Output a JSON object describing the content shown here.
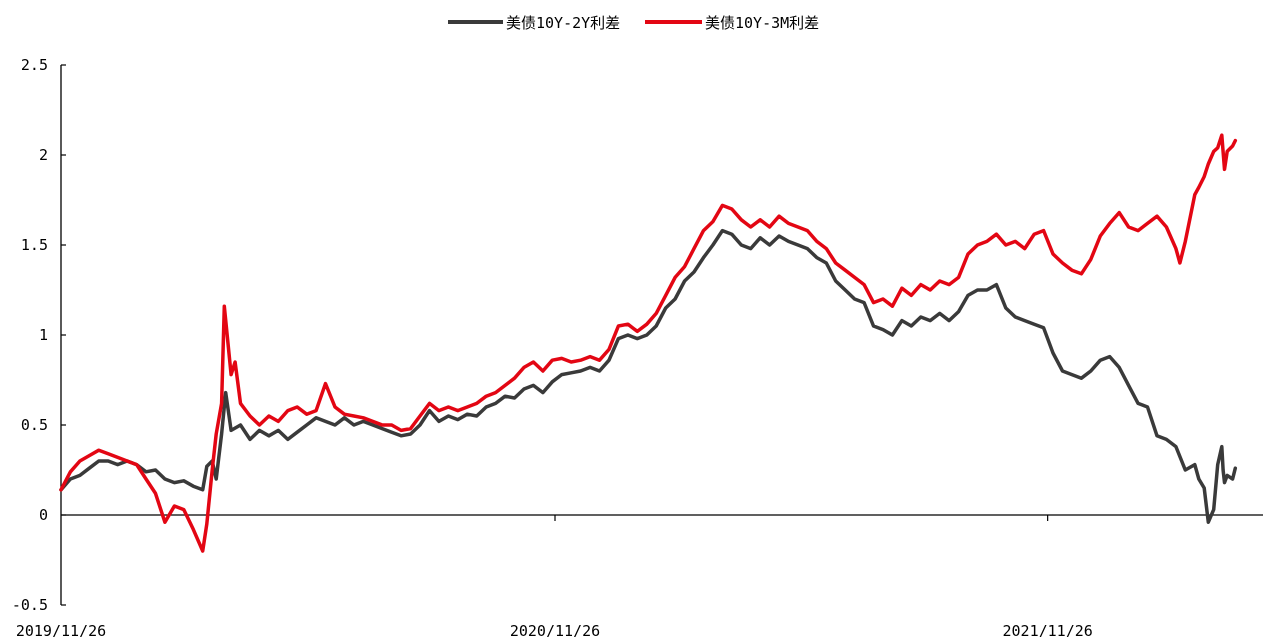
{
  "chart_data": {
    "type": "line",
    "title": "",
    "xlabel": "",
    "ylabel": "",
    "ylim": [
      -0.5,
      2.5
    ],
    "yticks": [
      "2.5",
      "2",
      "1.5",
      "1",
      "0.5",
      "0",
      "-0.5"
    ],
    "xticks": [
      "2019/11/26",
      "2020/11/26",
      "2021/11/26"
    ],
    "x_range": [
      "2019/11/26",
      "2022/04/06"
    ],
    "grid": false,
    "legend": "top-center",
    "series": [
      {
        "name": "美债10Y-2Y利差",
        "color": "#3a3a3a",
        "points": [
          [
            "2019/11/26",
            0.14
          ],
          [
            "2019/12/03",
            0.2
          ],
          [
            "2019/12/10",
            0.22
          ],
          [
            "2019/12/17",
            0.26
          ],
          [
            "2019/12/24",
            0.3
          ],
          [
            "2019/12/31",
            0.3
          ],
          [
            "2020/01/07",
            0.28
          ],
          [
            "2020/01/14",
            0.3
          ],
          [
            "2020/01/21",
            0.28
          ],
          [
            "2020/01/28",
            0.24
          ],
          [
            "2020/02/04",
            0.25
          ],
          [
            "2020/02/11",
            0.2
          ],
          [
            "2020/02/18",
            0.18
          ],
          [
            "2020/02/25",
            0.19
          ],
          [
            "2020/03/03",
            0.16
          ],
          [
            "2020/03/10",
            0.14
          ],
          [
            "2020/03/13",
            0.27
          ],
          [
            "2020/03/17",
            0.3
          ],
          [
            "2020/03/20",
            0.2
          ],
          [
            "2020/03/24",
            0.45
          ],
          [
            "2020/03/27",
            0.68
          ],
          [
            "2020/03/31",
            0.47
          ],
          [
            "2020/04/07",
            0.5
          ],
          [
            "2020/04/14",
            0.42
          ],
          [
            "2020/04/21",
            0.47
          ],
          [
            "2020/04/28",
            0.44
          ],
          [
            "2020/05/05",
            0.47
          ],
          [
            "2020/05/12",
            0.42
          ],
          [
            "2020/05/19",
            0.46
          ],
          [
            "2020/05/26",
            0.5
          ],
          [
            "2020/06/02",
            0.54
          ],
          [
            "2020/06/09",
            0.52
          ],
          [
            "2020/06/16",
            0.5
          ],
          [
            "2020/06/23",
            0.54
          ],
          [
            "2020/06/30",
            0.5
          ],
          [
            "2020/07/07",
            0.52
          ],
          [
            "2020/07/14",
            0.5
          ],
          [
            "2020/07/21",
            0.48
          ],
          [
            "2020/07/28",
            0.46
          ],
          [
            "2020/08/04",
            0.44
          ],
          [
            "2020/08/11",
            0.45
          ],
          [
            "2020/08/18",
            0.5
          ],
          [
            "2020/08/25",
            0.58
          ],
          [
            "2020/09/01",
            0.52
          ],
          [
            "2020/09/08",
            0.55
          ],
          [
            "2020/09/15",
            0.53
          ],
          [
            "2020/09/22",
            0.56
          ],
          [
            "2020/09/29",
            0.55
          ],
          [
            "2020/10/06",
            0.6
          ],
          [
            "2020/10/13",
            0.62
          ],
          [
            "2020/10/20",
            0.66
          ],
          [
            "2020/10/27",
            0.65
          ],
          [
            "2020/11/03",
            0.7
          ],
          [
            "2020/11/10",
            0.72
          ],
          [
            "2020/11/17",
            0.68
          ],
          [
            "2020/11/24",
            0.74
          ],
          [
            "2020/12/01",
            0.78
          ],
          [
            "2020/12/08",
            0.79
          ],
          [
            "2020/12/15",
            0.8
          ],
          [
            "2020/12/22",
            0.82
          ],
          [
            "2020/12/29",
            0.8
          ],
          [
            "2021/01/05",
            0.86
          ],
          [
            "2021/01/12",
            0.98
          ],
          [
            "2021/01/19",
            1.0
          ],
          [
            "2021/01/26",
            0.98
          ],
          [
            "2021/02/02",
            1.0
          ],
          [
            "2021/02/09",
            1.05
          ],
          [
            "2021/02/16",
            1.15
          ],
          [
            "2021/02/23",
            1.2
          ],
          [
            "2021/03/02",
            1.3
          ],
          [
            "2021/03/09",
            1.35
          ],
          [
            "2021/03/16",
            1.43
          ],
          [
            "2021/03/23",
            1.5
          ],
          [
            "2021/03/30",
            1.58
          ],
          [
            "2021/04/06",
            1.56
          ],
          [
            "2021/04/13",
            1.5
          ],
          [
            "2021/04/20",
            1.48
          ],
          [
            "2021/04/27",
            1.54
          ],
          [
            "2021/05/04",
            1.5
          ],
          [
            "2021/05/11",
            1.55
          ],
          [
            "2021/05/18",
            1.52
          ],
          [
            "2021/05/25",
            1.5
          ],
          [
            "2021/06/01",
            1.48
          ],
          [
            "2021/06/08",
            1.43
          ],
          [
            "2021/06/15",
            1.4
          ],
          [
            "2021/06/22",
            1.3
          ],
          [
            "2021/06/29",
            1.25
          ],
          [
            "2021/07/06",
            1.2
          ],
          [
            "2021/07/13",
            1.18
          ],
          [
            "2021/07/20",
            1.05
          ],
          [
            "2021/07/27",
            1.03
          ],
          [
            "2021/08/03",
            1.0
          ],
          [
            "2021/08/10",
            1.08
          ],
          [
            "2021/08/17",
            1.05
          ],
          [
            "2021/08/24",
            1.1
          ],
          [
            "2021/08/31",
            1.08
          ],
          [
            "2021/09/07",
            1.12
          ],
          [
            "2021/09/14",
            1.08
          ],
          [
            "2021/09/21",
            1.13
          ],
          [
            "2021/09/28",
            1.22
          ],
          [
            "2021/10/05",
            1.25
          ],
          [
            "2021/10/12",
            1.25
          ],
          [
            "2021/10/19",
            1.28
          ],
          [
            "2021/10/26",
            1.15
          ],
          [
            "2021/11/02",
            1.1
          ],
          [
            "2021/11/09",
            1.08
          ],
          [
            "2021/11/16",
            1.06
          ],
          [
            "2021/11/23",
            1.04
          ],
          [
            "2021/11/30",
            0.9
          ],
          [
            "2021/12/07",
            0.8
          ],
          [
            "2021/12/14",
            0.78
          ],
          [
            "2021/12/21",
            0.76
          ],
          [
            "2021/12/28",
            0.8
          ],
          [
            "2022/01/04",
            0.86
          ],
          [
            "2022/01/11",
            0.88
          ],
          [
            "2022/01/18",
            0.82
          ],
          [
            "2022/01/25",
            0.72
          ],
          [
            "2022/02/01",
            0.62
          ],
          [
            "2022/02/08",
            0.6
          ],
          [
            "2022/02/15",
            0.44
          ],
          [
            "2022/02/22",
            0.42
          ],
          [
            "2022/03/01",
            0.38
          ],
          [
            "2022/03/08",
            0.25
          ],
          [
            "2022/03/15",
            0.28
          ],
          [
            "2022/03/18",
            0.2
          ],
          [
            "2022/03/22",
            0.15
          ],
          [
            "2022/03/25",
            -0.04
          ],
          [
            "2022/03/29",
            0.03
          ],
          [
            "2022/04/01",
            0.28
          ],
          [
            "2022/04/04",
            0.38
          ],
          [
            "2022/04/05",
            0.25
          ],
          [
            "2022/04/06",
            0.18
          ],
          [
            "2022/04/08",
            0.22
          ],
          [
            "2022/04/12",
            0.2
          ],
          [
            "2022/04/14",
            0.26
          ]
        ]
      },
      {
        "name": "美债10Y-3M利差",
        "color": "#e30613",
        "points": [
          [
            "2019/11/26",
            0.14
          ],
          [
            "2019/12/03",
            0.24
          ],
          [
            "2019/12/10",
            0.3
          ],
          [
            "2019/12/17",
            0.33
          ],
          [
            "2019/12/24",
            0.36
          ],
          [
            "2019/12/31",
            0.34
          ],
          [
            "2020/01/07",
            0.32
          ],
          [
            "2020/01/14",
            0.3
          ],
          [
            "2020/01/21",
            0.28
          ],
          [
            "2020/01/28",
            0.2
          ],
          [
            "2020/02/04",
            0.12
          ],
          [
            "2020/02/11",
            -0.04
          ],
          [
            "2020/02/18",
            0.05
          ],
          [
            "2020/02/25",
            0.03
          ],
          [
            "2020/03/03",
            -0.08
          ],
          [
            "2020/03/10",
            -0.2
          ],
          [
            "2020/03/13",
            -0.05
          ],
          [
            "2020/03/17",
            0.25
          ],
          [
            "2020/03/20",
            0.45
          ],
          [
            "2020/03/24",
            0.62
          ],
          [
            "2020/03/26",
            1.16
          ],
          [
            "2020/03/31",
            0.78
          ],
          [
            "2020/04/03",
            0.85
          ],
          [
            "2020/04/07",
            0.62
          ],
          [
            "2020/04/14",
            0.55
          ],
          [
            "2020/04/21",
            0.5
          ],
          [
            "2020/04/28",
            0.55
          ],
          [
            "2020/05/05",
            0.52
          ],
          [
            "2020/05/12",
            0.58
          ],
          [
            "2020/05/19",
            0.6
          ],
          [
            "2020/05/26",
            0.56
          ],
          [
            "2020/06/02",
            0.58
          ],
          [
            "2020/06/09",
            0.73
          ],
          [
            "2020/06/16",
            0.6
          ],
          [
            "2020/06/23",
            0.56
          ],
          [
            "2020/06/30",
            0.55
          ],
          [
            "2020/07/07",
            0.54
          ],
          [
            "2020/07/14",
            0.52
          ],
          [
            "2020/07/21",
            0.5
          ],
          [
            "2020/07/28",
            0.5
          ],
          [
            "2020/08/04",
            0.47
          ],
          [
            "2020/08/11",
            0.48
          ],
          [
            "2020/08/18",
            0.55
          ],
          [
            "2020/08/25",
            0.62
          ],
          [
            "2020/09/01",
            0.58
          ],
          [
            "2020/09/08",
            0.6
          ],
          [
            "2020/09/15",
            0.58
          ],
          [
            "2020/09/22",
            0.6
          ],
          [
            "2020/09/29",
            0.62
          ],
          [
            "2020/10/06",
            0.66
          ],
          [
            "2020/10/13",
            0.68
          ],
          [
            "2020/10/20",
            0.72
          ],
          [
            "2020/10/27",
            0.76
          ],
          [
            "2020/11/03",
            0.82
          ],
          [
            "2020/11/10",
            0.85
          ],
          [
            "2020/11/17",
            0.8
          ],
          [
            "2020/11/24",
            0.86
          ],
          [
            "2020/12/01",
            0.87
          ],
          [
            "2020/12/08",
            0.85
          ],
          [
            "2020/12/15",
            0.86
          ],
          [
            "2020/12/22",
            0.88
          ],
          [
            "2020/12/29",
            0.86
          ],
          [
            "2021/01/05",
            0.92
          ],
          [
            "2021/01/12",
            1.05
          ],
          [
            "2021/01/19",
            1.06
          ],
          [
            "2021/01/26",
            1.02
          ],
          [
            "2021/02/02",
            1.06
          ],
          [
            "2021/02/09",
            1.12
          ],
          [
            "2021/02/16",
            1.22
          ],
          [
            "2021/02/23",
            1.32
          ],
          [
            "2021/03/02",
            1.38
          ],
          [
            "2021/03/09",
            1.48
          ],
          [
            "2021/03/16",
            1.58
          ],
          [
            "2021/03/23",
            1.63
          ],
          [
            "2021/03/30",
            1.72
          ],
          [
            "2021/04/06",
            1.7
          ],
          [
            "2021/04/13",
            1.64
          ],
          [
            "2021/04/20",
            1.6
          ],
          [
            "2021/04/27",
            1.64
          ],
          [
            "2021/05/04",
            1.6
          ],
          [
            "2021/05/11",
            1.66
          ],
          [
            "2021/05/18",
            1.62
          ],
          [
            "2021/05/25",
            1.6
          ],
          [
            "2021/06/01",
            1.58
          ],
          [
            "2021/06/08",
            1.52
          ],
          [
            "2021/06/15",
            1.48
          ],
          [
            "2021/06/22",
            1.4
          ],
          [
            "2021/06/29",
            1.36
          ],
          [
            "2021/07/06",
            1.32
          ],
          [
            "2021/07/13",
            1.28
          ],
          [
            "2021/07/20",
            1.18
          ],
          [
            "2021/07/27",
            1.2
          ],
          [
            "2021/08/03",
            1.16
          ],
          [
            "2021/08/10",
            1.26
          ],
          [
            "2021/08/17",
            1.22
          ],
          [
            "2021/08/24",
            1.28
          ],
          [
            "2021/08/31",
            1.25
          ],
          [
            "2021/09/07",
            1.3
          ],
          [
            "2021/09/14",
            1.28
          ],
          [
            "2021/09/21",
            1.32
          ],
          [
            "2021/09/28",
            1.45
          ],
          [
            "2021/10/05",
            1.5
          ],
          [
            "2021/10/12",
            1.52
          ],
          [
            "2021/10/19",
            1.56
          ],
          [
            "2021/10/26",
            1.5
          ],
          [
            "2021/11/02",
            1.52
          ],
          [
            "2021/11/09",
            1.48
          ],
          [
            "2021/11/16",
            1.56
          ],
          [
            "2021/11/23",
            1.58
          ],
          [
            "2021/11/30",
            1.45
          ],
          [
            "2021/12/07",
            1.4
          ],
          [
            "2021/12/14",
            1.36
          ],
          [
            "2021/12/21",
            1.34
          ],
          [
            "2021/12/28",
            1.42
          ],
          [
            "2022/01/04",
            1.55
          ],
          [
            "2022/01/11",
            1.62
          ],
          [
            "2022/01/18",
            1.68
          ],
          [
            "2022/01/25",
            1.6
          ],
          [
            "2022/02/01",
            1.58
          ],
          [
            "2022/02/08",
            1.62
          ],
          [
            "2022/02/15",
            1.66
          ],
          [
            "2022/02/22",
            1.6
          ],
          [
            "2022/03/01",
            1.48
          ],
          [
            "2022/03/04",
            1.4
          ],
          [
            "2022/03/08",
            1.52
          ],
          [
            "2022/03/15",
            1.78
          ],
          [
            "2022/03/18",
            1.82
          ],
          [
            "2022/03/22",
            1.88
          ],
          [
            "2022/03/25",
            1.95
          ],
          [
            "2022/03/29",
            2.02
          ],
          [
            "2022/04/01",
            2.04
          ],
          [
            "2022/04/04",
            2.11
          ],
          [
            "2022/04/06",
            1.92
          ],
          [
            "2022/04/08",
            2.02
          ],
          [
            "2022/04/12",
            2.05
          ],
          [
            "2022/04/14",
            2.08
          ]
        ]
      }
    ]
  }
}
